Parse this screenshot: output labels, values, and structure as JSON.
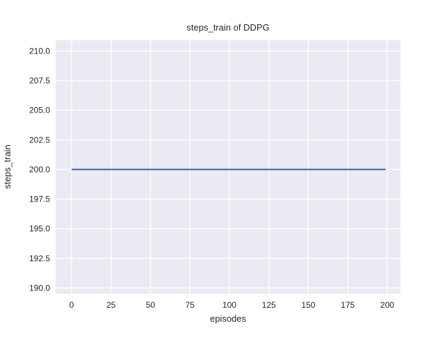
{
  "chart_data": {
    "type": "line",
    "title": "steps_train of DDPG",
    "xlabel": "episodes",
    "ylabel": "steps_train",
    "style": "seaborn-darkgrid",
    "grid": true,
    "legend": false,
    "xlim": [
      -10.1,
      208.4
    ],
    "ylim": [
      189.5,
      210.9
    ],
    "xticks": [
      0,
      25,
      50,
      75,
      100,
      125,
      150,
      175,
      200
    ],
    "xtick_labels": [
      "0",
      "25",
      "50",
      "75",
      "100",
      "125",
      "150",
      "175",
      "200"
    ],
    "yticks": [
      190.0,
      192.5,
      195.0,
      197.5,
      200.0,
      202.5,
      205.0,
      207.5,
      210.0
    ],
    "ytick_labels": [
      "190.0",
      "192.5",
      "195.0",
      "197.5",
      "200.0",
      "202.5",
      "205.0",
      "207.5",
      "210.0"
    ],
    "series": [
      {
        "name": "steps_train",
        "x": [
          0,
          199
        ],
        "y": [
          200,
          200
        ],
        "color": "#4C72B0",
        "note": "constant value 200 steps per episode across episodes 0-199"
      }
    ],
    "colors": {
      "figure_background": "#FFFFFF",
      "axes_background": "#EAEAF2",
      "grid": "#FFFFFF",
      "text": "#262626",
      "line": "#4C72B0"
    }
  }
}
